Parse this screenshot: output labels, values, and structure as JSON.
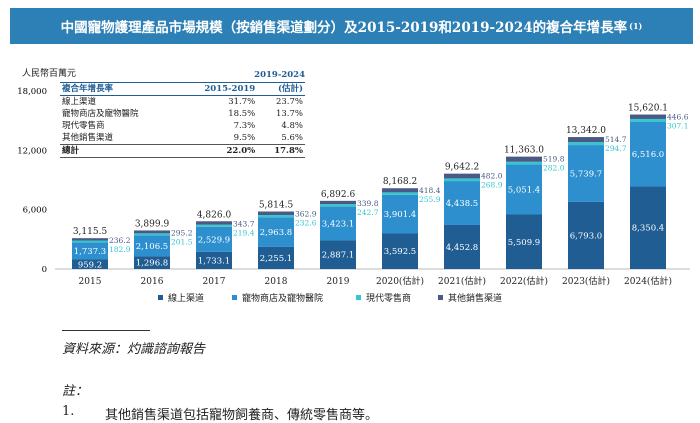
{
  "title": "中國寵物護理產品市場規模（按銷售渠道劃分）及2015-2019和2019-2024的複合年增長率",
  "title_note": "(1)",
  "colors": {
    "online": "#1f5d93",
    "pet_store": "#2d8fce",
    "retail": "#35c6cf",
    "other": "#4a5a84",
    "title_bg": "#2d80b6"
  },
  "chart_data": {
    "type": "bar",
    "stacked": true,
    "ylabel": "人民幣百萬元",
    "ylim": [
      0,
      18000
    ],
    "yticks": [
      "0",
      "6,000",
      "12,000",
      "18,000"
    ],
    "ytick_values": [
      0,
      6000,
      12000,
      18000
    ],
    "categories": [
      "2015",
      "2016",
      "2017",
      "2018",
      "2019",
      "2020(估計)",
      "2021(估計)",
      "2022(估計)",
      "2023(估計)",
      "2024(估計)"
    ],
    "series": [
      {
        "name": "線上渠道",
        "color_key": "online",
        "values": [
          959.2,
          1296.8,
          1733.1,
          2255.1,
          2887.1,
          3592.5,
          4452.8,
          5509.9,
          6793.0,
          8350.4
        ],
        "labels": [
          "959.2",
          "1,296.8",
          "1,733.1",
          "2,255.1",
          "2,887.1",
          "3,592.5",
          "4,452.8",
          "5,509.9",
          "6,793.0",
          "8,350.4"
        ]
      },
      {
        "name": "寵物商店及寵物醫院",
        "color_key": "pet_store",
        "values": [
          1737.3,
          2106.5,
          2529.9,
          2963.8,
          3423.1,
          3901.4,
          4438.5,
          5051.4,
          5739.7,
          6516.0
        ],
        "labels": [
          "1,737.3",
          "2,106.5",
          "2,529.9",
          "2,963.8",
          "3,423.1",
          "3,901.4",
          "4,438.5",
          "5,051.4",
          "5,739.7",
          "6,516.0"
        ]
      },
      {
        "name": "現代零售商",
        "color_key": "retail",
        "values": [
          182.9,
          201.5,
          219.4,
          232.6,
          242.7,
          255.9,
          268.9,
          282.0,
          294.7,
          307.1
        ],
        "labels": [
          "182.9",
          "201.5",
          "219.4",
          "232.6",
          "242.7",
          "255.9",
          "268.9",
          "282.0",
          "294.7",
          "307.1"
        ]
      },
      {
        "name": "其他銷售渠道",
        "color_key": "other",
        "values": [
          236.2,
          295.2,
          343.7,
          362.9,
          339.8,
          418.4,
          482.0,
          519.8,
          514.7,
          446.6
        ],
        "labels": [
          "236.2",
          "295.2",
          "343.7",
          "362.9",
          "339.8",
          "418.4",
          "482.0",
          "519.8",
          "514.7",
          "446.6"
        ]
      }
    ],
    "totals": [
      3115.5,
      3899.9,
      4826.0,
      5814.5,
      6892.6,
      8168.2,
      9642.2,
      11363.0,
      13342.0,
      15620.1
    ],
    "total_labels": [
      "3,115.5",
      "3,899.9",
      "4,826.0",
      "5,814.5",
      "6,892.6",
      "8,168.2",
      "9,642.2",
      "11,363.0",
      "13,342.0",
      "15,620.1"
    ]
  },
  "cagr_table": {
    "header": {
      "label": "複合年增長率",
      "col1": "2015-2019",
      "col2_line1": "2019-2024",
      "col2_line2": "(估計)"
    },
    "rows": [
      {
        "label": "線上渠道",
        "col1": "31.7%",
        "col2": "23.7%"
      },
      {
        "label": "寵物商店及寵物醫院",
        "col1": "18.5%",
        "col2": "13.7%"
      },
      {
        "label": "現代零售商",
        "col1": "7.3%",
        "col2": "4.8%"
      },
      {
        "label": "其他銷售渠道",
        "col1": "9.5%",
        "col2": "5.6%"
      }
    ],
    "total": {
      "label": "總計",
      "col1": "22.0%",
      "col2": "17.8%"
    }
  },
  "legend": [
    "線上渠道",
    "寵物商店及寵物醫院",
    "現代零售商",
    "其他銷售渠道"
  ],
  "source": "資料來源：灼識諮詢報告",
  "note_label": "註：",
  "notes": [
    {
      "num": "1.",
      "text": "其他銷售渠道包括寵物飼養商、傳統零售商等。"
    }
  ]
}
